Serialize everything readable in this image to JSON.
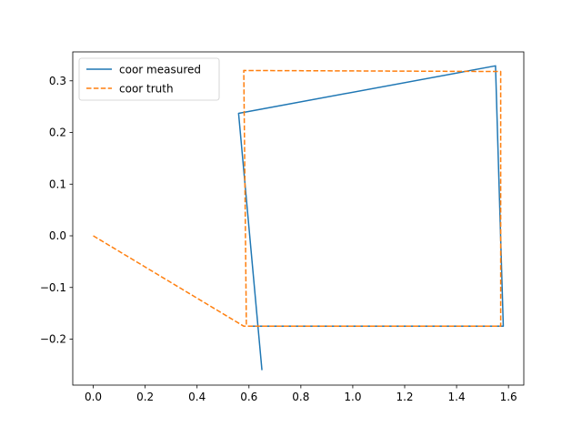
{
  "chart_data": {
    "type": "line",
    "title": "",
    "xlabel": "",
    "ylabel": "",
    "xlim": [
      -0.079,
      1.659
    ],
    "ylim": [
      -0.289,
      0.356
    ],
    "xticks": [
      0.0,
      0.2,
      0.4,
      0.6,
      0.8,
      1.0,
      1.2,
      1.4,
      1.6
    ],
    "xtick_labels": [
      "0.0",
      "0.2",
      "0.4",
      "0.6",
      "0.8",
      "1.0",
      "1.2",
      "1.4",
      "1.6"
    ],
    "yticks": [
      -0.2,
      -0.1,
      0.0,
      0.1,
      0.2,
      0.3
    ],
    "ytick_labels": [
      "−0.2",
      "−0.1",
      "0.0",
      "0.1",
      "0.2",
      "0.3"
    ],
    "grid": true,
    "legend_position": "upper-left",
    "series": [
      {
        "name": "coor measured",
        "color": "#1f77b4",
        "dash": "solid",
        "x": [
          0.65,
          0.56,
          1.55,
          1.58,
          0.6
        ],
        "y": [
          -0.26,
          0.237,
          0.329,
          -0.175,
          -0.175
        ]
      },
      {
        "name": "coor truth",
        "color": "#ff7f0e",
        "dash": "dashed",
        "x": [
          0.0,
          0.58,
          1.57,
          1.57,
          0.58,
          0.59
        ],
        "y": [
          0.0,
          -0.175,
          -0.175,
          0.318,
          0.32,
          -0.175
        ]
      }
    ]
  }
}
